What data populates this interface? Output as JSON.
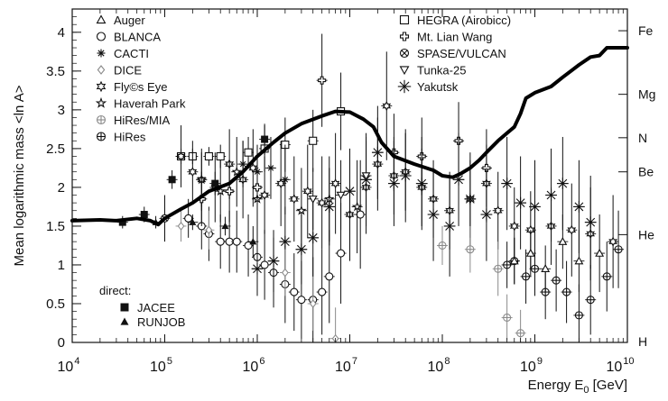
{
  "chart_data": {
    "type": "scatter",
    "xscale": "log",
    "xlim": [
      10000,
      10000000000
    ],
    "ylim": [
      0,
      4.3
    ],
    "ylabel": "Mean logarithmic mass <ln A>",
    "xlabel": "Energy E₀ [GeV]",
    "xticks": [
      {
        "value": 10000,
        "base": "10",
        "exp": "4"
      },
      {
        "value": 100000,
        "base": "10",
        "exp": "5"
      },
      {
        "value": 1000000,
        "base": "10",
        "exp": "6"
      },
      {
        "value": 10000000,
        "base": "10",
        "exp": "7"
      },
      {
        "value": 100000000,
        "base": "10",
        "exp": "8"
      },
      {
        "value": 1000000000,
        "base": "10",
        "exp": "9"
      },
      {
        "value": 10000000000,
        "base": "10",
        "exp": "10"
      }
    ],
    "yticks": [
      {
        "value": 0,
        "label": "0"
      },
      {
        "value": 0.5,
        "label": "0.5"
      },
      {
        "value": 1,
        "label": "1"
      },
      {
        "value": 1.5,
        "label": "1.5"
      },
      {
        "value": 2,
        "label": "2"
      },
      {
        "value": 2.5,
        "label": "2.5"
      },
      {
        "value": 3,
        "label": "3"
      },
      {
        "value": 3.5,
        "label": "3.5"
      },
      {
        "value": 4,
        "label": "4"
      }
    ],
    "elements": [
      {
        "label": "Fe",
        "value": 4.02
      },
      {
        "label": "Mg",
        "value": 3.2
      },
      {
        "label": "N",
        "value": 2.64
      },
      {
        "label": "Be",
        "value": 2.2
      },
      {
        "label": "He",
        "value": 1.39
      },
      {
        "label": "H",
        "value": 0
      }
    ],
    "legend_columns": [
      [
        {
          "label": "Auger",
          "marker": "triangle-open",
          "color": "#111111"
        },
        {
          "label": "BLANCA",
          "marker": "circle-open",
          "color": "#111111"
        },
        {
          "label": "CACTI",
          "marker": "asterisk",
          "color": "#111111"
        },
        {
          "label": "DICE",
          "marker": "diamond-open",
          "color": "#8a8a8a"
        },
        {
          "label": "Fly©s Eye",
          "marker": "star6-open",
          "color": "#111111"
        },
        {
          "label": "Haverah Park",
          "marker": "star-open",
          "color": "#111111"
        },
        {
          "label": "HiRes/MIA",
          "marker": "circle-plus",
          "color": "#8a8a8a"
        },
        {
          "label": "HiRes",
          "marker": "circle-plus",
          "color": "#111111"
        }
      ],
      [
        {
          "label": "HEGRA (Airobicc)",
          "marker": "square-open",
          "color": "#111111"
        },
        {
          "label": "Mt. Lian Wang",
          "marker": "cross-open",
          "color": "#111111"
        },
        {
          "label": "SPASE/VULCAN",
          "marker": "circle-x",
          "color": "#111111"
        },
        {
          "label": "Tunka-25",
          "marker": "triangle-down-open",
          "color": "#111111"
        },
        {
          "label": "Yakutsk",
          "marker": "asterisk-big",
          "color": "#111111"
        }
      ]
    ],
    "direct_legend": {
      "title": "direct:",
      "items": [
        {
          "label": "JACEE",
          "marker": "square-filled",
          "color": "#111111"
        },
        {
          "label": "RUNJOB",
          "marker": "triangle-filled",
          "color": "#111111"
        }
      ]
    },
    "model_curve": {
      "x": [
        10000,
        20000,
        30000,
        50000,
        70000,
        85000,
        100000,
        150000,
        200000,
        300000,
        500000,
        700000,
        1000000,
        1500000,
        2000000,
        3000000,
        5000000,
        7000000,
        10000000,
        14000000,
        18000000,
        22000000,
        30000000,
        50000000,
        80000000,
        100000000,
        130000000,
        160000000,
        200000000,
        250000000,
        300000000,
        400000000,
        500000000,
        600000000,
        700000000,
        800000000,
        1000000000,
        1500000000,
        2000000000,
        3000000000,
        4000000000,
        5000000000,
        6000000000,
        8000000000,
        10000000000
      ],
      "y": [
        1.57,
        1.58,
        1.57,
        1.6,
        1.57,
        1.52,
        1.6,
        1.72,
        1.8,
        1.95,
        2.05,
        2.2,
        2.4,
        2.58,
        2.7,
        2.82,
        2.92,
        2.98,
        2.97,
        2.88,
        2.78,
        2.58,
        2.4,
        2.3,
        2.22,
        2.15,
        2.13,
        2.18,
        2.25,
        2.35,
        2.45,
        2.6,
        2.7,
        2.78,
        2.95,
        3.15,
        3.22,
        3.3,
        3.42,
        3.58,
        3.68,
        3.7,
        3.8,
        3.8,
        3.8
      ]
    },
    "series": [
      {
        "name": "HEGRA (Airobicc)",
        "marker": "square-open",
        "color": "#111111",
        "points": [
          [
            150000,
            2.4,
            0.1
          ],
          [
            200000,
            2.4,
            0.1
          ],
          [
            300000,
            2.4,
            0.12
          ],
          [
            400000,
            2.4,
            0.15
          ],
          [
            800000,
            2.45,
            0.2
          ],
          [
            1200000,
            2.5,
            0.3
          ],
          [
            2000000,
            2.55,
            0.35
          ],
          [
            4000000,
            2.6,
            0.4
          ],
          [
            8000000,
            2.98,
            0.5
          ]
        ]
      },
      {
        "name": "BLANCA",
        "marker": "circle-open",
        "color": "#111111",
        "points": [
          [
            180000,
            1.6,
            0.25
          ],
          [
            250000,
            1.5,
            0.3
          ],
          [
            300000,
            1.4,
            0.35
          ],
          [
            400000,
            1.3,
            0.35
          ],
          [
            500000,
            1.3,
            0.4
          ],
          [
            600000,
            1.3,
            0.4
          ],
          [
            800000,
            1.25,
            0.4
          ],
          [
            1000000,
            1.1,
            0.45
          ],
          [
            1200000,
            1.0,
            0.45
          ],
          [
            1500000,
            0.9,
            0.45
          ],
          [
            2000000,
            0.75,
            0.5
          ],
          [
            2500000,
            0.65,
            0.5
          ],
          [
            3000000,
            0.55,
            0.5
          ],
          [
            4000000,
            0.55,
            0.55
          ],
          [
            5000000,
            0.65,
            0.55
          ],
          [
            6000000,
            0.85,
            0.6
          ],
          [
            8000000,
            1.15,
            0.65
          ],
          [
            13000000,
            1.65,
            0.7
          ]
        ]
      },
      {
        "name": "Fly©s Eye",
        "marker": "star6-open",
        "color": "#111111",
        "points": [
          [
            150000,
            2.4,
            0.4
          ],
          [
            200000,
            2.2,
            0.4
          ],
          [
            250000,
            2.1,
            0.4
          ],
          [
            350000,
            2.0,
            0.45
          ],
          [
            500000,
            2.3,
            0.45
          ],
          [
            700000,
            2.1,
            0.5
          ],
          [
            900000,
            2.25,
            0.5
          ],
          [
            1200000,
            1.9,
            0.5
          ],
          [
            1800000,
            2.05,
            0.55
          ],
          [
            2500000,
            1.85,
            0.55
          ],
          [
            3500000,
            1.95,
            0.6
          ],
          [
            5000000,
            1.8,
            0.6
          ],
          [
            7000000,
            2.05,
            0.65
          ],
          [
            10000000,
            1.65,
            0.6
          ],
          [
            15000000,
            2.0,
            0.6
          ],
          [
            20000000,
            2.3,
            0.6
          ],
          [
            25000000,
            3.05,
            0.7
          ],
          [
            30000000,
            2.15,
            0.5
          ],
          [
            40000000,
            2.2,
            0.5
          ],
          [
            60000000,
            2.0,
            0.5
          ],
          [
            80000000,
            1.85,
            0.5
          ],
          [
            120000000,
            1.7,
            0.5
          ],
          [
            200000000,
            1.85,
            0.5
          ],
          [
            300000000,
            2.05,
            0.5
          ],
          [
            400000000,
            1.7,
            0.5
          ],
          [
            600000000,
            1.5,
            0.5
          ],
          [
            900000000,
            1.45,
            0.5
          ],
          [
            1500000000,
            1.5,
            0.5
          ],
          [
            2500000000,
            1.45,
            0.6
          ],
          [
            4000000000,
            1.4,
            0.6
          ],
          [
            7000000000,
            1.3,
            0.6
          ]
        ]
      },
      {
        "name": "Haverah Park",
        "marker": "star-open",
        "color": "#111111",
        "points": [
          [
            250000,
            2.1,
            0.35
          ],
          [
            400000,
            1.95,
            0.4
          ],
          [
            600000,
            2.2,
            0.45
          ],
          [
            1000000,
            1.85,
            0.5
          ],
          [
            3000000,
            1.7,
            0.55
          ],
          [
            6000000,
            1.85,
            0.55
          ],
          [
            12000000,
            1.75,
            0.6
          ]
        ]
      },
      {
        "name": "CACTI",
        "marker": "asterisk",
        "color": "#111111",
        "points": [
          [
            700000,
            2.3,
            0.3
          ],
          [
            1000000,
            2.2,
            0.35
          ],
          [
            1400000,
            2.25,
            0.4
          ],
          [
            2000000,
            2.1,
            0.45
          ]
        ]
      },
      {
        "name": "Mt. Lian Wang",
        "marker": "cross-open",
        "color": "#111111",
        "points": [
          [
            250000,
            1.85,
            0.35
          ],
          [
            500000,
            1.95,
            0.4
          ],
          [
            1000000,
            2.0,
            0.5
          ],
          [
            5000000,
            3.38,
            0.6
          ],
          [
            30000000,
            2.45,
            0.5
          ],
          [
            60000000,
            2.4,
            0.5
          ],
          [
            150000000,
            2.6,
            0.5
          ],
          [
            300000000,
            2.25,
            0.5
          ]
        ]
      },
      {
        "name": "Yakutsk",
        "marker": "asterisk-big",
        "color": "#111111",
        "points": [
          [
            1000000,
            0.95,
            0.35
          ],
          [
            1500000,
            1.05,
            0.4
          ],
          [
            2000000,
            1.3,
            0.45
          ],
          [
            3000000,
            1.2,
            0.45
          ],
          [
            4000000,
            1.35,
            0.5
          ],
          [
            6000000,
            1.75,
            0.5
          ],
          [
            10000000,
            1.95,
            0.55
          ],
          [
            15000000,
            2.1,
            0.6
          ],
          [
            20000000,
            2.45,
            0.6
          ],
          [
            30000000,
            2.05,
            0.55
          ],
          [
            40000000,
            2.15,
            0.6
          ],
          [
            60000000,
            2.05,
            0.6
          ],
          [
            80000000,
            1.65,
            0.6
          ],
          [
            120000000,
            1.5,
            0.65
          ],
          [
            150000000,
            2.1,
            0.6
          ],
          [
            200000000,
            1.85,
            0.6
          ],
          [
            300000000,
            1.65,
            0.6
          ],
          [
            500000000,
            2.05,
            0.6
          ],
          [
            700000000,
            1.8,
            0.6
          ],
          [
            1000000000,
            1.75,
            0.6
          ],
          [
            1500000000,
            1.9,
            0.6
          ],
          [
            2000000000,
            2.05,
            0.6
          ],
          [
            3000000000,
            1.75,
            0.6
          ],
          [
            4000000000,
            1.55,
            0.6
          ]
        ]
      },
      {
        "name": "HiRes",
        "marker": "circle-plus",
        "color": "#111111",
        "points": [
          [
            500000000,
            1.0,
            0.3
          ],
          [
            600000000,
            1.05,
            0.3
          ],
          [
            800000000,
            0.85,
            0.35
          ],
          [
            1000000000,
            0.95,
            0.35
          ],
          [
            1300000000,
            0.65,
            0.35
          ],
          [
            1700000000,
            0.8,
            0.4
          ],
          [
            2200000000,
            0.65,
            0.4
          ],
          [
            3000000000,
            0.35,
            0.4
          ],
          [
            4000000000,
            0.55,
            0.45
          ],
          [
            6000000000,
            0.85,
            0.45
          ],
          [
            8000000000,
            1.2,
            0.5
          ]
        ]
      },
      {
        "name": "HiRes/MIA",
        "marker": "circle-plus",
        "color": "#8a8a8a",
        "points": [
          [
            100000000,
            1.25,
            0.25
          ],
          [
            200000000,
            1.2,
            0.3
          ],
          [
            400000000,
            0.95,
            0.35
          ],
          [
            500000000,
            0.32,
            0.3
          ],
          [
            700000000,
            0.12,
            0.3
          ]
        ]
      },
      {
        "name": "DICE",
        "marker": "diamond-open",
        "color": "#8a8a8a",
        "points": [
          [
            150000,
            1.5,
            0.2
          ],
          [
            300000,
            1.45,
            0.25
          ],
          [
            2000000,
            0.9,
            0.3
          ],
          [
            4000000,
            0.5,
            0.35
          ],
          [
            7000000,
            0.05,
            0.4
          ]
        ]
      },
      {
        "name": "Auger",
        "marker": "triangle-open",
        "color": "#111111",
        "points": [
          [
            600000000,
            1.05,
            0.3
          ],
          [
            900000000,
            1.15,
            0.3
          ],
          [
            1300000000,
            0.95,
            0.3
          ],
          [
            2000000000,
            1.3,
            0.35
          ],
          [
            3000000000,
            1.05,
            0.4
          ],
          [
            5000000000,
            1.15,
            0.5
          ]
        ]
      },
      {
        "name": "SPASE/VULCAN",
        "marker": "circle-x",
        "color": "#111111",
        "points": [
          [
            100000,
            1.6,
            0.3
          ]
        ]
      },
      {
        "name": "Tunka-25",
        "marker": "triangle-down-open",
        "color": "#111111",
        "points": [
          [
            4000000,
            1.85,
            0.4
          ],
          [
            8000000,
            1.9,
            0.45
          ],
          [
            15000000,
            2.15,
            0.5
          ]
        ]
      },
      {
        "name": "JACEE",
        "marker": "square-filled",
        "color": "#111111",
        "points": [
          [
            35000,
            1.55,
            0.08
          ],
          [
            60000,
            1.65,
            0.1
          ],
          [
            120000,
            2.1,
            0.12
          ],
          [
            350000,
            2.05,
            0.15
          ],
          [
            1200000,
            2.62,
            0.2
          ]
        ]
      },
      {
        "name": "RUNJOB",
        "marker": "triangle-filled",
        "color": "#111111",
        "points": [
          [
            80000,
            1.55,
            0.08
          ],
          [
            200000,
            1.55,
            0.1
          ],
          [
            450000,
            1.5,
            0.12
          ],
          [
            900000,
            1.3,
            0.2
          ]
        ]
      }
    ]
  }
}
